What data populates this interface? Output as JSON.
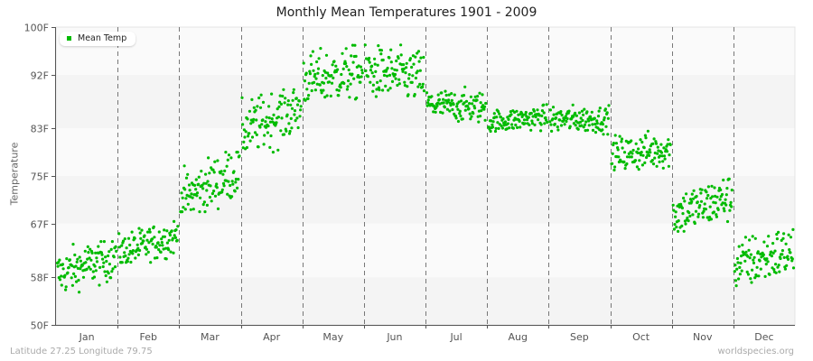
{
  "title": "Monthly Mean Temperatures 1901 - 2009",
  "footer": {
    "location": "Latitude 27.25 Longitude 79.75",
    "source": "worldspecies.org"
  },
  "legend": {
    "label": "Mean Temp",
    "color": "#00bb00"
  },
  "colors": {
    "point": "#00bb00",
    "band_light": "#fafafa",
    "band_dark": "#f4f4f4",
    "grid_dash": "#777777",
    "axis": "#555555"
  },
  "chart_data": {
    "type": "scatter",
    "title": "Monthly Mean Temperatures 1901 - 2009",
    "xlabel": "",
    "ylabel": "Temperature",
    "ylim": [
      50,
      100
    ],
    "yticks": [
      {
        "value": 50,
        "label": "50F"
      },
      {
        "value": 58,
        "label": "58F"
      },
      {
        "value": 67,
        "label": "67F"
      },
      {
        "value": 75,
        "label": "75F"
      },
      {
        "value": 83,
        "label": "83F"
      },
      {
        "value": 92,
        "label": "92F"
      },
      {
        "value": 100,
        "label": "100F"
      }
    ],
    "categories": [
      "Jan",
      "Feb",
      "Mar",
      "Apr",
      "May",
      "Jun",
      "Jul",
      "Aug",
      "Sep",
      "Oct",
      "Nov",
      "Dec"
    ],
    "grid": "vertical dashed separators between months; alternating horizontal bands",
    "legend_position": "top-left inside plot",
    "series": [
      {
        "name": "Mean Temp",
        "points_per_month": 109,
        "monthly_summary": [
          {
            "month": "Jan",
            "min": 55.5,
            "max": 64.0,
            "mean": 59.3,
            "start": 58.5,
            "end": 61.5
          },
          {
            "month": "Feb",
            "min": 60.5,
            "max": 67.5,
            "mean": 63.5,
            "start": 62.0,
            "end": 65.0
          },
          {
            "month": "Mar",
            "min": 69.0,
            "max": 79.0,
            "mean": 74.0,
            "start": 71.0,
            "end": 76.0
          },
          {
            "month": "Apr",
            "min": 79.0,
            "max": 89.5,
            "mean": 84.8,
            "start": 82.5,
            "end": 86.5
          },
          {
            "month": "May",
            "min": 87.0,
            "max": 97.0,
            "mean": 92.0,
            "start": 91.0,
            "end": 92.5
          },
          {
            "month": "Jun",
            "min": 87.0,
            "max": 97.0,
            "mean": 92.3,
            "start": 92.5,
            "end": 91.5
          },
          {
            "month": "Jul",
            "min": 84.0,
            "max": 90.0,
            "mean": 86.6,
            "start": 87.0,
            "end": 86.5
          },
          {
            "month": "Aug",
            "min": 82.5,
            "max": 87.0,
            "mean": 84.6,
            "start": 84.0,
            "end": 85.0
          },
          {
            "month": "Sep",
            "min": 82.0,
            "max": 87.0,
            "mean": 84.3,
            "start": 84.5,
            "end": 84.5
          },
          {
            "month": "Oct",
            "min": 76.0,
            "max": 83.0,
            "mean": 79.0,
            "start": 78.5,
            "end": 79.5
          },
          {
            "month": "Nov",
            "min": 65.5,
            "max": 74.5,
            "mean": 69.8,
            "start": 68.5,
            "end": 71.5
          },
          {
            "month": "Dec",
            "min": 56.0,
            "max": 66.0,
            "mean": 61.0,
            "start": 60.0,
            "end": 62.5
          }
        ]
      }
    ]
  }
}
